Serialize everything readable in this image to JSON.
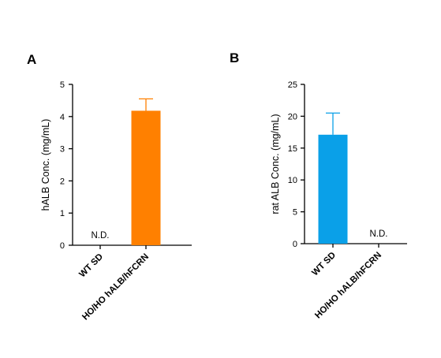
{
  "chart_data": [
    {
      "type": "bar",
      "panel": "A",
      "categories": [
        "WT SD",
        "HO/HO hALB/hFCRN"
      ],
      "values": [
        null,
        4.18
      ],
      "error_upper": [
        null,
        4.55
      ],
      "annotations": [
        "N.D.",
        ""
      ],
      "bar_color": "#FF8000",
      "ylabel": "hALB Conc. (mg/mL)",
      "ylim": [
        0,
        5
      ],
      "yticks": [
        0,
        1,
        2,
        3,
        4,
        5
      ],
      "grid": false
    },
    {
      "type": "bar",
      "panel": "B",
      "categories": [
        "WT SD",
        "HO/HO hALB/hFCRN"
      ],
      "values": [
        17.1,
        null
      ],
      "error_upper": [
        20.5,
        null
      ],
      "annotations": [
        "",
        "N.D."
      ],
      "bar_color": "#0AA0E8",
      "ylabel": "rat ALB Conc. (mg/mL)",
      "ylim": [
        0,
        25
      ],
      "yticks": [
        0,
        5,
        10,
        15,
        20,
        25
      ],
      "grid": false
    }
  ]
}
